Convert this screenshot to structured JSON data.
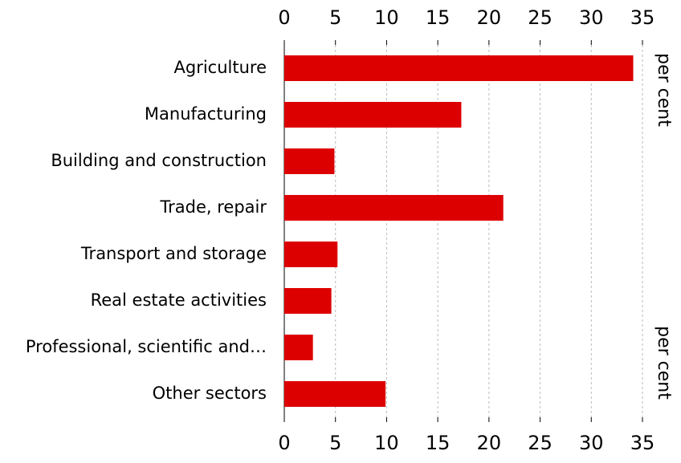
{
  "chart_data": {
    "type": "bar",
    "orientation": "horizontal",
    "categories": [
      "Agriculture",
      "Manufacturing",
      "Building and construction",
      "Trade, repair",
      "Transport and storage",
      "Real estate activities",
      "Professional, scientific and…",
      "Other sectors"
    ],
    "values": [
      34.1,
      17.3,
      4.9,
      21.4,
      5.2,
      4.6,
      2.8,
      9.9
    ],
    "color": "#dd0000",
    "xlabel": "per cent",
    "xlim": [
      0,
      35
    ],
    "xticks": [
      0,
      5,
      10,
      15,
      20,
      25,
      30,
      35
    ],
    "grid": true
  }
}
